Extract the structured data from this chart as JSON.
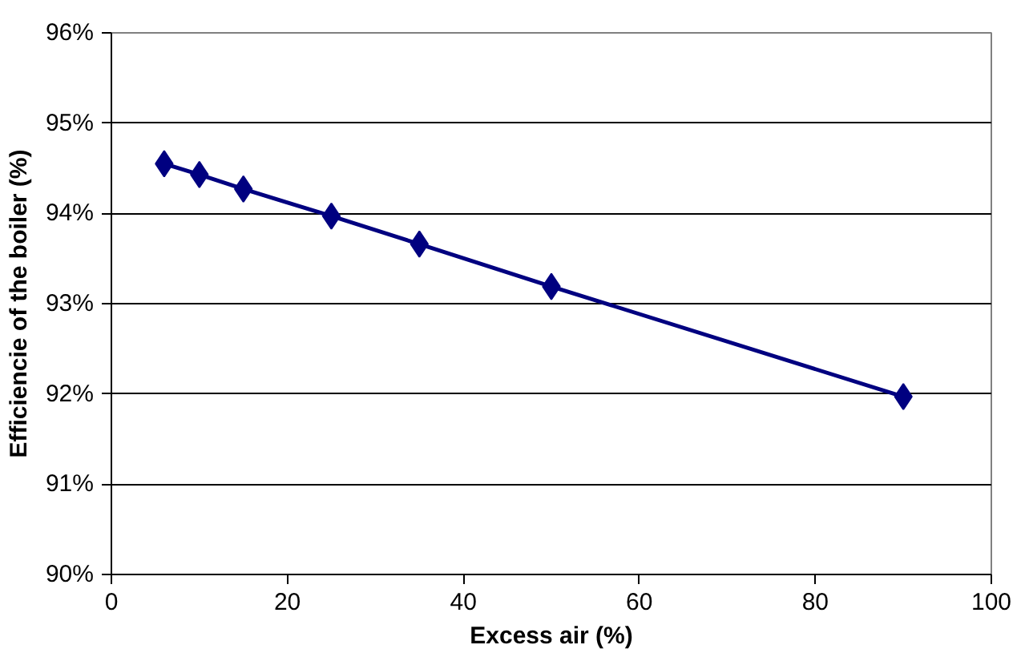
{
  "chart_data": {
    "type": "line",
    "xlabel": "Excess air (%)",
    "ylabel": "Efficiencie of the boiler (%)",
    "x": [
      6,
      10,
      15,
      25,
      35,
      50,
      90
    ],
    "series": [
      {
        "color": "#000080",
        "values": [
          94.55,
          94.43,
          94.27,
          93.97,
          93.66,
          93.19,
          91.97
        ]
      }
    ],
    "xlim": [
      0,
      100
    ],
    "xticks": [
      0,
      20,
      40,
      60,
      80,
      100
    ],
    "ylim": [
      90,
      96
    ],
    "yticks": [
      {
        "value": 90,
        "label": "90%"
      },
      {
        "value": 91,
        "label": "91%"
      },
      {
        "value": 92,
        "label": "92%"
      },
      {
        "value": 93,
        "label": "93%"
      },
      {
        "value": 94,
        "label": "94%"
      },
      {
        "value": 95,
        "label": "95%"
      },
      {
        "value": 96,
        "label": "96%"
      }
    ],
    "grid": "y",
    "marker": "diamond",
    "line_style": "solid"
  }
}
